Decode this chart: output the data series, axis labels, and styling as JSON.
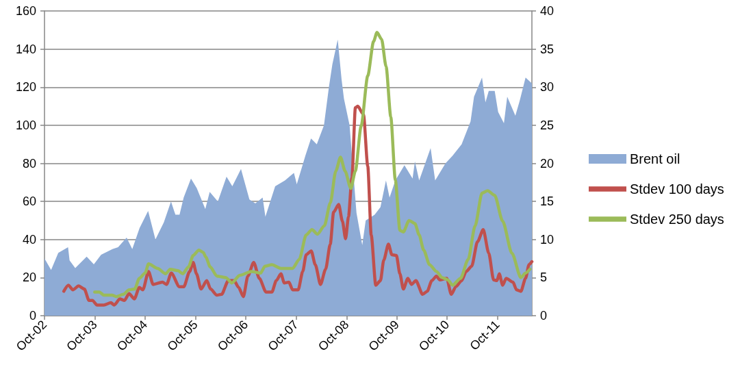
{
  "chart_data": {
    "type": "area",
    "xlim": [
      "2002-10-01",
      "2012-06-07"
    ],
    "xticks": [
      {
        "value": "2002-10-01",
        "label": "Oct-02"
      },
      {
        "value": "2003-10-01",
        "label": "Oct-03"
      },
      {
        "value": "2004-10-01",
        "label": "Oct-04"
      },
      {
        "value": "2005-10-01",
        "label": "Oct-05"
      },
      {
        "value": "2006-10-01",
        "label": "Oct-06"
      },
      {
        "value": "2007-10-01",
        "label": "Oct-07"
      },
      {
        "value": "2008-10-01",
        "label": "Oct-08"
      },
      {
        "value": "2009-10-01",
        "label": "Oct-09"
      },
      {
        "value": "2010-10-01",
        "label": "Oct-10"
      },
      {
        "value": "2011-10-01",
        "label": "Oct-11"
      }
    ],
    "ylim": [
      0,
      160
    ],
    "yticks": [
      0,
      20,
      40,
      60,
      80,
      100,
      120,
      140,
      160
    ],
    "y2lim": [
      0,
      40
    ],
    "y2ticks": [
      0,
      5,
      10,
      15,
      20,
      25,
      30,
      35,
      40
    ],
    "grid": "y",
    "legend": "right",
    "marker": "none",
    "series": [
      {
        "name": "Brent oil",
        "color": "#8eabd5",
        "x": [
          "2002-10-01",
          "2002-11-18",
          "2003-01-09",
          "2003-03-21",
          "2003-04-01",
          "2003-05-12",
          "2003-08-03",
          "2003-09-24",
          "2003-11-16",
          "2004-02-06",
          "2004-03-18",
          "2004-05-19",
          "2004-06-29",
          "2004-08-21",
          "2004-10-22",
          "2004-12-14",
          "2005-02-13",
          "2005-04-06",
          "2005-05-08",
          "2005-06-07",
          "2005-07-07",
          "2005-08-29",
          "2005-10-10",
          "2005-12-11",
          "2006-01-12",
          "2006-03-12",
          "2006-05-14",
          "2006-06-25",
          "2006-08-27",
          "2006-10-27",
          "2006-12-09",
          "2007-01-31",
          "2007-02-20",
          "2007-05-02",
          "2007-07-12",
          "2007-09-15",
          "2007-10-06",
          "2007-12-07",
          "2008-01-17",
          "2008-02-28",
          "2008-04-20",
          "2008-05-26",
          "2008-06-20",
          "2008-07-29",
          "2008-08-26",
          "2008-09-12",
          "2008-10-23",
          "2008-12-12",
          "2009-01-23",
          "2009-02-17",
          "2009-04-23",
          "2009-06-04",
          "2009-07-14",
          "2009-08-09",
          "2009-09-20",
          "2009-11-25",
          "2010-01-23",
          "2010-02-09",
          "2010-03-12",
          "2010-06-03",
          "2010-07-06",
          "2010-09-19",
          "2010-11-09",
          "2011-01-14",
          "2011-03-20",
          "2011-04-14",
          "2011-06-11",
          "2011-07-06",
          "2011-07-30",
          "2011-09-11",
          "2011-10-06",
          "2011-11-17",
          "2011-12-11",
          "2012-02-08",
          "2012-03-11",
          "2012-04-22",
          "2012-06-07"
        ],
        "values": [
          30,
          24,
          33,
          36,
          29,
          25,
          31,
          27,
          32,
          35,
          36,
          41,
          35,
          46,
          55,
          40,
          49,
          60,
          53,
          53,
          62,
          72,
          67,
          56,
          65,
          60,
          73,
          68,
          77,
          61,
          59,
          62,
          52,
          68,
          71,
          75,
          69,
          84,
          93,
          90,
          100,
          120,
          132,
          145,
          124,
          114,
          100,
          54,
          37,
          50,
          53,
          57,
          71,
          62,
          71,
          79,
          72,
          81,
          71,
          88,
          71,
          80,
          84,
          90,
          102,
          115,
          125,
          112,
          118,
          118,
          107,
          101,
          115,
          105,
          113,
          125,
          122
        ]
      },
      {
        "name": "Stdev 100 days",
        "type": "line",
        "axis": "y2",
        "color": "#c0504d",
        "x": [
          "2003-02-18",
          "2003-03-23",
          "2003-04-25",
          "2003-06-06",
          "2003-07-17",
          "2003-08-20",
          "2003-09-14",
          "2003-10-17",
          "2003-12-06",
          "2004-01-26",
          "2004-02-19",
          "2004-03-31",
          "2004-05-03",
          "2004-06-06",
          "2004-07-14",
          "2004-08-19",
          "2004-09-14",
          "2004-10-25",
          "2004-11-27",
          "2005-02-03",
          "2005-03-05",
          "2005-04-08",
          "2005-06-06",
          "2005-07-08",
          "2005-08-19",
          "2005-09-14",
          "2005-10-08",
          "2005-11-10",
          "2005-12-22",
          "2006-01-18",
          "2006-03-05",
          "2006-04-08",
          "2006-05-27",
          "2006-07-08",
          "2006-08-10",
          "2006-09-13",
          "2006-10-16",
          "2006-11-27",
          "2007-01-07",
          "2007-02-25",
          "2007-04-08",
          "2007-05-10",
          "2007-06-13",
          "2007-07-07",
          "2007-08-10",
          "2007-09-05",
          "2007-10-16",
          "2007-11-18",
          "2007-12-13",
          "2008-01-19",
          "2008-02-17",
          "2008-03-26",
          "2008-05-02",
          "2008-06-05",
          "2008-06-29",
          "2008-08-05",
          "2008-09-01",
          "2008-09-24",
          "2008-10-15",
          "2008-11-09",
          "2008-12-04",
          "2008-12-21",
          "2009-02-01",
          "2009-03-04",
          "2009-03-29",
          "2009-05-01",
          "2009-06-04",
          "2009-06-28",
          "2009-08-01",
          "2009-08-26",
          "2009-09-28",
          "2009-10-23",
          "2009-11-17",
          "2009-12-20",
          "2010-01-15",
          "2010-02-16",
          "2010-04-06",
          "2010-05-09",
          "2010-06-12",
          "2010-07-15",
          "2010-08-09",
          "2010-09-28",
          "2010-10-31",
          "2010-12-03",
          "2011-01-14",
          "2011-02-16",
          "2011-03-28",
          "2011-05-09",
          "2011-06-20",
          "2011-07-30",
          "2011-09-03",
          "2011-09-28",
          "2011-10-14",
          "2011-11-08",
          "2011-12-03",
          "2012-01-22",
          "2012-02-16",
          "2012-03-19",
          "2012-04-22",
          "2012-05-17",
          "2012-06-07"
        ],
        "values": [
          3.2,
          4.0,
          3.4,
          3.9,
          3.5,
          2.0,
          2.0,
          1.4,
          1.4,
          1.7,
          1.4,
          2.2,
          2.0,
          2.9,
          2.2,
          3.7,
          3.4,
          5.8,
          4.1,
          4.4,
          4.1,
          5.6,
          3.8,
          3.8,
          5.8,
          7.0,
          5.5,
          3.5,
          4.6,
          3.5,
          2.7,
          2.8,
          4.6,
          4.6,
          3.7,
          2.5,
          5.2,
          7.0,
          4.9,
          3.1,
          3.1,
          4.6,
          5.5,
          4.3,
          4.4,
          3.4,
          3.4,
          5.8,
          8.0,
          8.5,
          6.7,
          4.1,
          6.1,
          9.4,
          13.6,
          14.6,
          12.4,
          10.1,
          13.0,
          18.1,
          27.3,
          27.5,
          26.4,
          19.6,
          10.6,
          4.0,
          4.6,
          7.3,
          9.4,
          8.0,
          7.9,
          5.5,
          3.5,
          4.9,
          4.1,
          4.6,
          2.8,
          3.2,
          4.6,
          5.2,
          4.7,
          4.9,
          2.8,
          3.8,
          4.6,
          5.8,
          6.5,
          9.7,
          11.3,
          8.2,
          4.7,
          4.6,
          5.5,
          4.0,
          4.9,
          4.4,
          3.4,
          3.2,
          4.9,
          6.7,
          7.1
        ]
      },
      {
        "name": "Stdev 250 days",
        "type": "line",
        "axis": "y2",
        "color": "#9bbb59",
        "x": [
          "2003-09-30",
          "2003-11-03",
          "2003-12-06",
          "2004-02-03",
          "2004-03-06",
          "2004-04-25",
          "2004-06-06",
          "2004-07-17",
          "2004-08-19",
          "2004-09-30",
          "2004-10-25",
          "2004-12-30",
          "2005-02-26",
          "2005-03-31",
          "2005-05-28",
          "2005-06-30",
          "2005-08-11",
          "2005-09-14",
          "2005-10-25",
          "2005-11-27",
          "2005-12-14",
          "2006-01-16",
          "2006-03-05",
          "2006-05-10",
          "2006-06-21",
          "2006-08-18",
          "2006-11-10",
          "2007-01-16",
          "2007-02-17",
          "2007-04-08",
          "2007-06-13",
          "2007-09-05",
          "2007-10-24",
          "2007-12-13",
          "2008-01-24",
          "2008-03-04",
          "2008-04-23",
          "2008-06-05",
          "2008-07-15",
          "2008-08-18",
          "2008-09-20",
          "2008-11-01",
          "2008-12-04",
          "2009-01-15",
          "2009-03-04",
          "2009-04-15",
          "2009-05-10",
          "2009-06-12",
          "2009-07-15",
          "2009-08-18",
          "2009-09-20",
          "2009-10-23",
          "2009-11-17",
          "2009-12-29",
          "2010-02-09",
          "2010-03-12",
          "2010-04-14",
          "2010-05-26",
          "2010-07-15",
          "2010-08-26",
          "2010-10-06",
          "2010-11-09",
          "2011-01-06",
          "2011-03-03",
          "2011-04-22",
          "2011-06-11",
          "2011-07-22",
          "2011-09-11",
          "2011-11-08",
          "2012-01-14",
          "2012-03-19",
          "2012-04-22",
          "2012-05-24"
        ],
        "values": [
          3.1,
          3.1,
          2.7,
          2.7,
          2.5,
          2.8,
          3.4,
          3.5,
          4.9,
          5.6,
          6.8,
          6.2,
          5.5,
          6.1,
          5.9,
          5.5,
          6.4,
          7.9,
          8.6,
          8.3,
          7.7,
          6.4,
          5.2,
          5.0,
          4.3,
          5.3,
          5.8,
          5.6,
          6.5,
          6.7,
          6.2,
          6.2,
          7.4,
          10.6,
          11.3,
          10.7,
          11.8,
          14.8,
          19.0,
          20.8,
          19.0,
          16.7,
          19.0,
          24.9,
          31.5,
          36.0,
          37.2,
          36.3,
          32.7,
          26.1,
          17.8,
          11.2,
          11.0,
          12.5,
          12.1,
          10.6,
          8.6,
          6.7,
          5.8,
          5.0,
          4.7,
          4.0,
          4.9,
          7.4,
          11.8,
          16.1,
          16.4,
          15.8,
          12.4,
          8.2,
          5.0,
          5.6,
          6.1
        ]
      }
    ]
  }
}
